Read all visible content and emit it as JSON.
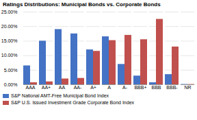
{
  "chart_data": {
    "type": "bar",
    "title": "Ratings Distributions: Municipal Bonds vs. Corporate Bonds",
    "categories": [
      "AAA",
      "AA+",
      "AA",
      "AA-",
      "A+",
      "A",
      "A-",
      "BBB+",
      "BBB",
      "BBB-",
      "NR"
    ],
    "series": [
      {
        "name": "S&P National AMT-Free Municipal Bond Index",
        "color": "#4472C4",
        "values": [
          6.5,
          15.0,
          19.0,
          17.5,
          12.0,
          16.5,
          7.0,
          3.0,
          0.7,
          3.5,
          0.1
        ]
      },
      {
        "name": "S&P U.S. Issued Investment Grade Corporate Bond Index",
        "color": "#C0504D",
        "values": [
          0.7,
          1.0,
          2.0,
          2.2,
          11.5,
          15.2,
          17.0,
          15.5,
          22.5,
          13.0,
          0.1
        ]
      }
    ],
    "ylim": [
      0,
      25
    ],
    "yticks": [
      {
        "value": 0,
        "label": "0.00%"
      },
      {
        "value": 5,
        "label": "5.00%"
      },
      {
        "value": 10,
        "label": "10.00%"
      },
      {
        "value": 15,
        "label": "15.00%"
      },
      {
        "value": 20,
        "label": "20.00%"
      },
      {
        "value": 25,
        "label": "25.00%"
      }
    ],
    "grid": true,
    "legend": "lower left"
  }
}
